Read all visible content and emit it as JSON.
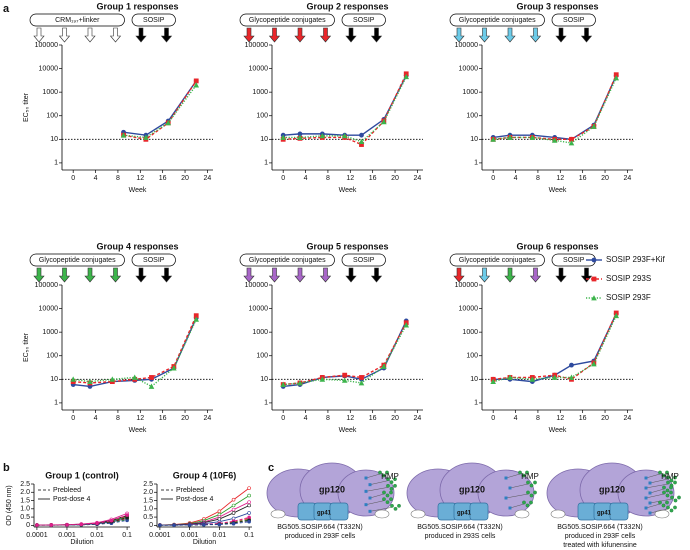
{
  "panel_labels": [
    "a",
    "b",
    "c"
  ],
  "shared_legend": [
    {
      "name": "SOSIP 293F+Kif",
      "color": "#2e4a9e",
      "marker": "circle",
      "dash": "solid"
    },
    {
      "name": "SOSIP 293S",
      "color": "#e8262a",
      "marker": "square",
      "dash": "dashed"
    },
    {
      "name": "SOSIP 293F",
      "color": "#3cb44b",
      "marker": "triangle",
      "dash": "dotted"
    }
  ],
  "chart_data": [
    {
      "type": "line",
      "title": "Group 1 responses",
      "xlabel": "Week",
      "ylabel": "EC₅₀ titer",
      "x": [
        9,
        13,
        17,
        22
      ],
      "xlim": [
        -2,
        25
      ],
      "xticks": [
        0,
        4,
        8,
        12,
        16,
        20,
        24
      ],
      "ylim": [
        0.5,
        100000
      ],
      "yticks": [
        1,
        10,
        100,
        1000,
        10000,
        100000
      ],
      "log_y": true,
      "threshold": 10,
      "immunizations": [
        {
          "label": "CRM₁₉₇+linker",
          "colors": [
            "#ffffff",
            "#ffffff",
            "#ffffff",
            "#ffffff"
          ]
        },
        {
          "label": "SOSIP",
          "colors": [
            "#000000",
            "#000000"
          ]
        }
      ],
      "series": [
        {
          "values": [
            20,
            15,
            60,
            3000
          ]
        },
        {
          "values": [
            15,
            10,
            50,
            3000
          ]
        },
        {
          "values": [
            15,
            12,
            50,
            2000
          ]
        }
      ]
    },
    {
      "type": "line",
      "title": "Group 2 responses",
      "xlabel": "Week",
      "x": [
        0,
        3,
        7,
        11,
        14,
        18,
        22
      ],
      "xlim": [
        -2,
        25
      ],
      "xticks": [
        0,
        4,
        8,
        12,
        16,
        20,
        24
      ],
      "ylim": [
        0.5,
        100000
      ],
      "yticks": [
        1,
        10,
        100,
        1000,
        10000,
        100000
      ],
      "log_y": true,
      "threshold": 10,
      "immunizations": [
        {
          "label": "Glycopeptide conjugates",
          "colors": [
            "#e8262a",
            "#e8262a",
            "#e8262a",
            "#e8262a"
          ]
        },
        {
          "label": "SOSIP",
          "colors": [
            "#000000",
            "#000000"
          ]
        }
      ],
      "series": [
        {
          "values": [
            15,
            17,
            17,
            15,
            15,
            70,
            5000
          ]
        },
        {
          "values": [
            10,
            11,
            12,
            12,
            6,
            60,
            6000
          ]
        },
        {
          "values": [
            12,
            12,
            14,
            14,
            8,
            55,
            4500
          ]
        }
      ]
    },
    {
      "type": "line",
      "title": "Group 3 responses",
      "xlabel": "Week",
      "x": [
        0,
        3,
        7,
        11,
        14,
        18,
        22
      ],
      "xlim": [
        -2,
        25
      ],
      "xticks": [
        0,
        4,
        8,
        12,
        16,
        20,
        24
      ],
      "ylim": [
        0.5,
        100000
      ],
      "yticks": [
        1,
        10,
        100,
        1000,
        10000,
        100000
      ],
      "log_y": true,
      "threshold": 10,
      "immunizations": [
        {
          "label": "Glycopeptide conjugates",
          "colors": [
            "#6ccbe8",
            "#6ccbe8",
            "#6ccbe8",
            "#6ccbe8"
          ]
        },
        {
          "label": "SOSIP",
          "colors": [
            "#000000",
            "#000000"
          ]
        }
      ],
      "series": [
        {
          "values": [
            12,
            15,
            15,
            12,
            10,
            40,
            5000
          ]
        },
        {
          "values": [
            10,
            12,
            12,
            10,
            10,
            35,
            5500
          ]
        },
        {
          "values": [
            10,
            12,
            12,
            9,
            7,
            35,
            4000
          ]
        }
      ]
    },
    {
      "type": "line",
      "title": "Group 4 responses",
      "xlabel": "Week",
      "ylabel": "EC₅₀ titer",
      "x": [
        0,
        3,
        7,
        11,
        14,
        18,
        22
      ],
      "xlim": [
        -2,
        25
      ],
      "xticks": [
        0,
        4,
        8,
        12,
        16,
        20,
        24
      ],
      "ylim": [
        0.5,
        100000
      ],
      "yticks": [
        1,
        10,
        100,
        1000,
        10000,
        100000
      ],
      "log_y": true,
      "threshold": 10,
      "immunizations": [
        {
          "label": "Glycopeptide conjugates",
          "colors": [
            "#3cb44b",
            "#3cb44b",
            "#3cb44b",
            "#3cb44b"
          ]
        },
        {
          "label": "SOSIP",
          "colors": [
            "#000000",
            "#000000"
          ]
        }
      ],
      "series": [
        {
          "values": [
            6,
            5,
            8,
            9,
            10,
            30,
            4000
          ]
        },
        {
          "values": [
            8,
            7,
            8,
            10,
            12,
            35,
            5000
          ]
        },
        {
          "values": [
            10,
            8,
            10,
            12,
            5,
            30,
            3500
          ]
        }
      ]
    },
    {
      "type": "line",
      "title": "Group 5 responses",
      "xlabel": "Week",
      "x": [
        0,
        3,
        7,
        11,
        14,
        18,
        22
      ],
      "xlim": [
        -2,
        25
      ],
      "xticks": [
        0,
        4,
        8,
        12,
        16,
        20,
        24
      ],
      "ylim": [
        0.5,
        100000
      ],
      "yticks": [
        1,
        10,
        100,
        1000,
        10000,
        100000
      ],
      "log_y": true,
      "threshold": 10,
      "immunizations": [
        {
          "label": "Glycopeptide conjugates",
          "colors": [
            "#a866c8",
            "#a866c8",
            "#a866c8",
            "#a866c8"
          ]
        },
        {
          "label": "SOSIP",
          "colors": [
            "#000000",
            "#000000"
          ]
        }
      ],
      "series": [
        {
          "values": [
            5,
            6,
            12,
            14,
            10,
            30,
            3000
          ]
        },
        {
          "values": [
            6,
            7,
            12,
            15,
            12,
            40,
            2500
          ]
        },
        {
          "values": [
            6,
            7,
            10,
            9,
            7,
            35,
            2000
          ]
        }
      ]
    },
    {
      "type": "line",
      "title": "Group 6 responses",
      "xlabel": "Week",
      "x": [
        0,
        3,
        7,
        11,
        14,
        18,
        22
      ],
      "xlim": [
        -2,
        25
      ],
      "xticks": [
        0,
        4,
        8,
        12,
        16,
        20,
        24
      ],
      "ylim": [
        0.5,
        100000
      ],
      "yticks": [
        1,
        10,
        100,
        1000,
        10000,
        100000
      ],
      "log_y": true,
      "threshold": 10,
      "immunizations": [
        {
          "label": "Glycopeptide conjugates",
          "colors": [
            "#e8262a",
            "#6ccbe8",
            "#3cb44b",
            "#a866c8"
          ]
        },
        {
          "label": "SOSIP",
          "colors": [
            "#000000",
            "#000000"
          ]
        }
      ],
      "series": [
        {
          "values": [
            10,
            10,
            8,
            15,
            40,
            60,
            6000
          ]
        },
        {
          "values": [
            10,
            12,
            12,
            15,
            10,
            50,
            6500
          ]
        },
        {
          "values": [
            8,
            12,
            10,
            12,
            12,
            45,
            5000
          ]
        }
      ]
    },
    {
      "type": "line",
      "title": "Group 1 (control)",
      "xlabel": "Dilution",
      "ylabel": "OD (450 nm)",
      "x": [
        0.0001,
        0.0003,
        0.001,
        0.003,
        0.01,
        0.03,
        0.1
      ],
      "log_x": true,
      "xlim": [
        8e-05,
        0.125
      ],
      "xticks": [
        0.0001,
        0.001,
        0.01,
        0.1
      ],
      "ylim": [
        -0.1,
        2.5
      ],
      "yticks": [
        0,
        0.5,
        {
          "value": 1,
          "label": "1.0"
        },
        1.5,
        {
          "value": 2,
          "label": "2.0"
        },
        2.5
      ],
      "legend": [
        {
          "name": "Prebleed",
          "dash": "dashed"
        },
        {
          "name": "Post-dose 4",
          "dash": "solid"
        }
      ],
      "series": [
        {
          "color": "#e8262a",
          "dash": "solid",
          "values": [
            0.02,
            0.02,
            0.03,
            0.06,
            0.12,
            0.28,
            0.55
          ]
        },
        {
          "color": "#2ca02c",
          "dash": "solid",
          "values": [
            0.02,
            0.02,
            0.03,
            0.05,
            0.1,
            0.25,
            0.5
          ]
        },
        {
          "color": "#2e4a9e",
          "dash": "solid",
          "values": [
            0.01,
            0.02,
            0.02,
            0.04,
            0.09,
            0.2,
            0.42
          ]
        },
        {
          "color": "#222222",
          "dash": "solid",
          "values": [
            0.02,
            0.02,
            0.04,
            0.07,
            0.14,
            0.3,
            0.6
          ]
        },
        {
          "color": "#e0208c",
          "dash": "solid",
          "values": [
            0.02,
            0.03,
            0.04,
            0.08,
            0.16,
            0.36,
            0.72
          ]
        },
        {
          "color": "#e8262a",
          "dash": "dashed",
          "values": [
            0.01,
            0.02,
            0.02,
            0.04,
            0.08,
            0.18,
            0.4
          ]
        },
        {
          "color": "#2ca02c",
          "dash": "dashed",
          "values": [
            0.01,
            0.01,
            0.02,
            0.03,
            0.07,
            0.15,
            0.35
          ]
        },
        {
          "color": "#2e4a9e",
          "dash": "dashed",
          "values": [
            0.01,
            0.01,
            0.02,
            0.03,
            0.06,
            0.13,
            0.3
          ]
        },
        {
          "color": "#222222",
          "dash": "dashed",
          "values": [
            0.02,
            0.02,
            0.03,
            0.05,
            0.1,
            0.22,
            0.46
          ]
        },
        {
          "color": "#e0208c",
          "dash": "dashed",
          "values": [
            0.02,
            0.02,
            0.03,
            0.06,
            0.12,
            0.28,
            0.62
          ]
        }
      ]
    },
    {
      "type": "line",
      "title": "Group 4 (10F6)",
      "xlabel": "Dilution",
      "x": [
        0.0001,
        0.0003,
        0.001,
        0.003,
        0.01,
        0.03,
        0.1
      ],
      "log_x": true,
      "xlim": [
        8e-05,
        0.125
      ],
      "xticks": [
        0.0001,
        0.001,
        0.01,
        0.1
      ],
      "ylim": [
        -0.1,
        2.5
      ],
      "yticks": [
        0,
        0.5,
        {
          "value": 1,
          "label": "1.0"
        },
        1.5,
        {
          "value": 2,
          "label": "2.0"
        },
        2.5
      ],
      "legend": [
        {
          "name": "Prebleed",
          "dash": "dashed"
        },
        {
          "name": "Post-dose 4",
          "dash": "solid"
        }
      ],
      "series": [
        {
          "color": "#e8262a",
          "dash": "solid",
          "values": [
            0.02,
            0.05,
            0.14,
            0.38,
            0.85,
            1.55,
            2.25
          ]
        },
        {
          "color": "#2ca02c",
          "dash": "solid",
          "values": [
            0.02,
            0.04,
            0.1,
            0.28,
            0.65,
            1.2,
            1.8
          ]
        },
        {
          "color": "#e0208c",
          "dash": "solid",
          "values": [
            0.02,
            0.03,
            0.08,
            0.2,
            0.5,
            0.95,
            1.4
          ]
        },
        {
          "color": "#222222",
          "dash": "solid",
          "values": [
            0.02,
            0.03,
            0.06,
            0.16,
            0.38,
            0.75,
            1.2
          ]
        },
        {
          "color": "#2e4a9e",
          "dash": "solid",
          "values": [
            0.01,
            0.02,
            0.04,
            0.1,
            0.22,
            0.42,
            0.75
          ]
        },
        {
          "color": "#e8262a",
          "dash": "dashed",
          "values": [
            0.01,
            0.02,
            0.03,
            0.05,
            0.1,
            0.22,
            0.42
          ]
        },
        {
          "color": "#2ca02c",
          "dash": "dashed",
          "values": [
            0.01,
            0.02,
            0.02,
            0.04,
            0.08,
            0.17,
            0.35
          ]
        },
        {
          "color": "#e0208c",
          "dash": "dashed",
          "values": [
            0.02,
            0.02,
            0.03,
            0.06,
            0.12,
            0.25,
            0.48
          ]
        },
        {
          "color": "#222222",
          "dash": "dashed",
          "values": [
            0.01,
            0.01,
            0.02,
            0.04,
            0.07,
            0.14,
            0.3
          ]
        },
        {
          "color": "#2e4a9e",
          "dash": "dashed",
          "values": [
            0.01,
            0.01,
            0.02,
            0.03,
            0.05,
            0.1,
            0.22
          ]
        }
      ]
    }
  ],
  "panel_c": {
    "items": [
      {
        "gp120": "gp120",
        "gp41": "gp41",
        "hmp": "HMP",
        "caption": [
          "BG505.SOSIP.664 (T332N)",
          "produced in 293F cells"
        ]
      },
      {
        "gp120": "gp120",
        "gp41": "gp41",
        "hmp": "HMP",
        "caption": [
          "BG505.SOSIP.664 (T332N)",
          "produced in 293S cells"
        ]
      },
      {
        "gp120": "gp120",
        "gp41": "gp41",
        "hmp": "HMP",
        "caption": [
          "BG505.SOSIP.664 (T332N)",
          "produced in 293F cells",
          "treated with kifunensine"
        ]
      }
    ]
  }
}
